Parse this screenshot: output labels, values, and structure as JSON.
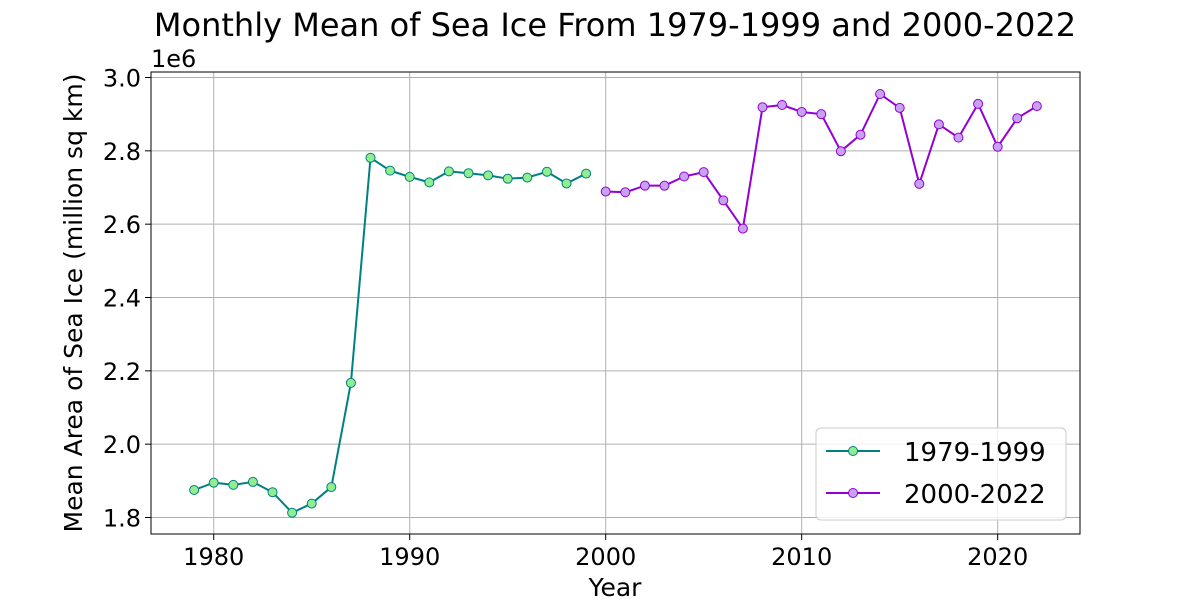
{
  "chart_data": {
    "type": "line",
    "title": "Monthly Mean of Sea Ice From 1979-1999 and 2000-2022",
    "xlabel": "Year",
    "ylabel": "Mean Area of Sea Ice (million sq km)",
    "y_offset_label": "1e6",
    "xlim": [
      1976.8,
      2024.2
    ],
    "ylim": [
      1.755,
      3.015
    ],
    "x_ticks": [
      1980,
      1990,
      2000,
      2010,
      2020
    ],
    "y_ticks": [
      1.8,
      2.0,
      2.2,
      2.4,
      2.6,
      2.8,
      3.0
    ],
    "x_tick_labels": [
      "1980",
      "1990",
      "2000",
      "2010",
      "2020"
    ],
    "y_tick_labels": [
      "1.8",
      "2.0",
      "2.2",
      "2.4",
      "2.6",
      "2.8",
      "3.0"
    ],
    "grid": true,
    "legend_position": "lower-right",
    "series": [
      {
        "name": "1979-1999",
        "color": "#008080",
        "marker_fill": "#90ee90",
        "x": [
          1979,
          1980,
          1981,
          1982,
          1983,
          1984,
          1985,
          1986,
          1987,
          1988,
          1989,
          1990,
          1991,
          1992,
          1993,
          1994,
          1995,
          1996,
          1997,
          1998,
          1999
        ],
        "y": [
          1.875,
          1.895,
          1.889,
          1.897,
          1.869,
          1.813,
          1.838,
          1.883,
          2.167,
          2.781,
          2.746,
          2.729,
          2.714,
          2.744,
          2.739,
          2.733,
          2.724,
          2.727,
          2.743,
          2.711,
          2.738
        ]
      },
      {
        "name": "2000-2022",
        "color": "#9400d3",
        "marker_fill": "#c8a2f0",
        "x": [
          2000,
          2001,
          2002,
          2003,
          2004,
          2005,
          2006,
          2007,
          2008,
          2009,
          2010,
          2011,
          2012,
          2013,
          2014,
          2015,
          2016,
          2017,
          2018,
          2019,
          2020,
          2021,
          2022
        ],
        "y": [
          2.689,
          2.687,
          2.705,
          2.705,
          2.73,
          2.742,
          2.665,
          2.588,
          2.919,
          2.925,
          2.906,
          2.9,
          2.799,
          2.844,
          2.955,
          2.917,
          2.71,
          2.872,
          2.836,
          2.928,
          2.811,
          2.889,
          2.922
        ]
      }
    ]
  }
}
